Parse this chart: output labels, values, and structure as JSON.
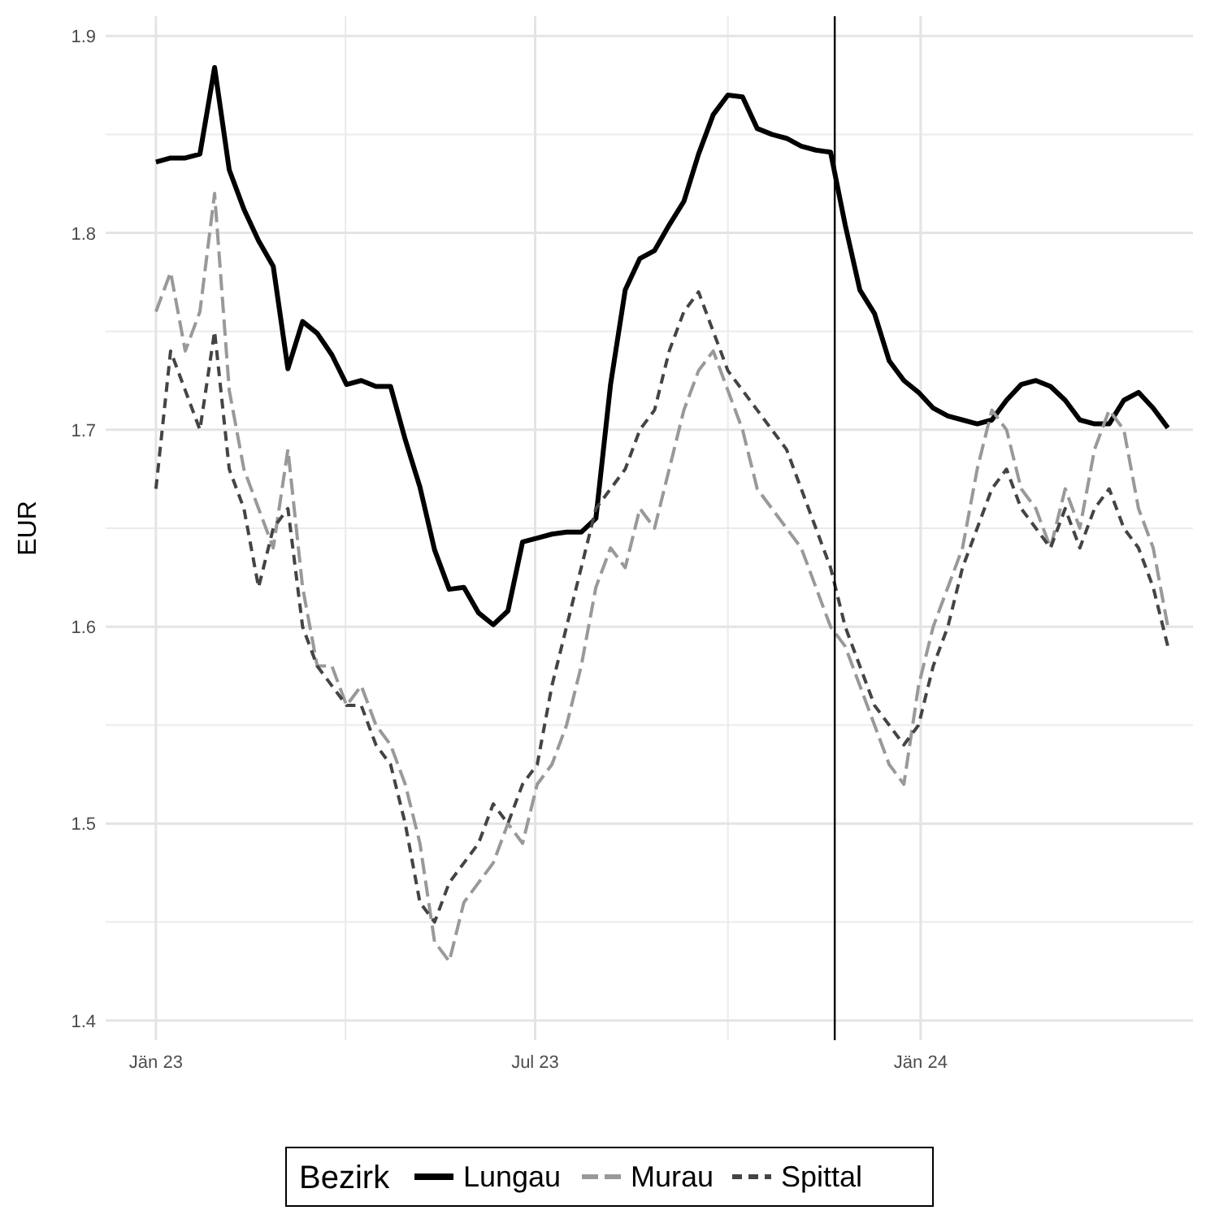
{
  "chart_data": {
    "type": "line",
    "ylabel": "EUR",
    "legend_title": "Bezirk",
    "legend": "bottom",
    "grid": true,
    "xlim": [
      "2022-12-08",
      "2024-05-10"
    ],
    "ylim": [
      1.39,
      1.91
    ],
    "xticks": [
      {
        "value": "2023-01-01",
        "label": "Jän 23"
      },
      {
        "value": "2023-07-01",
        "label": "Jul 23"
      },
      {
        "value": "2024-01-01",
        "label": "Jän 24"
      }
    ],
    "yticks": [
      1.4,
      1.5,
      1.6,
      1.7,
      1.8,
      1.9
    ],
    "ref_lines": [
      {
        "axis": "x",
        "value": "2023-11-21",
        "color": "#000000"
      }
    ],
    "x": [
      "2023-01-01",
      "2023-01-08",
      "2023-01-15",
      "2023-01-22",
      "2023-01-29",
      "2023-02-05",
      "2023-02-12",
      "2023-02-19",
      "2023-02-26",
      "2023-03-05",
      "2023-03-12",
      "2023-03-19",
      "2023-03-26",
      "2023-04-02",
      "2023-04-09",
      "2023-04-16",
      "2023-04-23",
      "2023-04-30",
      "2023-05-07",
      "2023-05-14",
      "2023-05-21",
      "2023-05-28",
      "2023-06-04",
      "2023-06-11",
      "2023-06-18",
      "2023-06-25",
      "2023-07-02",
      "2023-07-09",
      "2023-07-16",
      "2023-07-23",
      "2023-07-30",
      "2023-08-06",
      "2023-08-13",
      "2023-08-20",
      "2023-08-27",
      "2023-09-03",
      "2023-09-10",
      "2023-09-17",
      "2023-09-24",
      "2023-10-01",
      "2023-10-08",
      "2023-10-15",
      "2023-10-22",
      "2023-10-29",
      "2023-11-05",
      "2023-11-12",
      "2023-11-19",
      "2023-11-26",
      "2023-12-03",
      "2023-12-10",
      "2023-12-17",
      "2023-12-24",
      "2023-12-31",
      "2024-01-07",
      "2024-01-14",
      "2024-01-21",
      "2024-01-28",
      "2024-02-04",
      "2024-02-11",
      "2024-02-18",
      "2024-02-25",
      "2024-03-03",
      "2024-03-10",
      "2024-03-17",
      "2024-03-24",
      "2024-03-31",
      "2024-04-07",
      "2024-04-14",
      "2024-04-21",
      "2024-04-28"
    ],
    "series": [
      {
        "name": "Lungau",
        "color": "#000000",
        "line_style": "solid",
        "values": [
          1.836,
          1.838,
          1.838,
          1.84,
          1.884,
          1.832,
          1.812,
          1.796,
          1.783,
          1.731,
          1.755,
          1.749,
          1.738,
          1.723,
          1.725,
          1.722,
          1.722,
          1.695,
          1.671,
          1.639,
          1.619,
          1.62,
          1.607,
          1.601,
          1.608,
          1.643,
          1.645,
          1.647,
          1.648,
          1.648,
          1.655,
          1.723,
          1.771,
          1.787,
          1.791,
          1.804,
          1.816,
          1.84,
          1.86,
          1.87,
          1.869,
          1.853,
          1.85,
          1.848,
          1.844,
          1.842,
          1.841,
          1.804,
          1.771,
          1.759,
          1.735,
          1.725,
          1.719,
          1.711,
          1.707,
          1.705,
          1.703,
          1.705,
          1.715,
          1.723,
          1.725,
          1.722,
          1.715,
          1.705,
          1.703,
          1.703,
          1.715,
          1.719,
          1.711,
          1.701
        ]
      },
      {
        "name": "Murau",
        "color": "#999999",
        "line_style": "dashed",
        "values": [
          1.76,
          1.78,
          1.74,
          1.76,
          1.82,
          1.72,
          1.68,
          1.66,
          1.64,
          1.69,
          1.62,
          1.58,
          1.58,
          1.56,
          1.57,
          1.55,
          1.54,
          1.52,
          1.49,
          1.44,
          1.43,
          1.46,
          1.47,
          1.48,
          1.5,
          1.49,
          1.52,
          1.53,
          1.55,
          1.58,
          1.62,
          1.64,
          1.63,
          1.66,
          1.65,
          1.68,
          1.71,
          1.73,
          1.74,
          1.72,
          1.7,
          1.67,
          1.66,
          1.65,
          1.64,
          1.62,
          1.6,
          1.59,
          1.57,
          1.55,
          1.53,
          1.52,
          1.57,
          1.6,
          1.62,
          1.64,
          1.68,
          1.71,
          1.7,
          1.67,
          1.66,
          1.64,
          1.67,
          1.65,
          1.69,
          1.71,
          1.7,
          1.66,
          1.64,
          1.6
        ]
      },
      {
        "name": "Spittal",
        "color": "#444444",
        "line_style": "dashed",
        "values": [
          1.67,
          1.74,
          1.72,
          1.7,
          1.75,
          1.68,
          1.66,
          1.62,
          1.65,
          1.66,
          1.6,
          1.58,
          1.57,
          1.56,
          1.56,
          1.54,
          1.53,
          1.5,
          1.46,
          1.45,
          1.47,
          1.48,
          1.49,
          1.51,
          1.5,
          1.52,
          1.53,
          1.57,
          1.6,
          1.63,
          1.66,
          1.67,
          1.68,
          1.7,
          1.71,
          1.74,
          1.76,
          1.77,
          1.75,
          1.73,
          1.72,
          1.71,
          1.7,
          1.69,
          1.67,
          1.65,
          1.63,
          1.6,
          1.58,
          1.56,
          1.55,
          1.54,
          1.55,
          1.58,
          1.6,
          1.63,
          1.65,
          1.67,
          1.68,
          1.66,
          1.65,
          1.64,
          1.66,
          1.64,
          1.66,
          1.67,
          1.65,
          1.64,
          1.62,
          1.59
        ]
      }
    ]
  }
}
